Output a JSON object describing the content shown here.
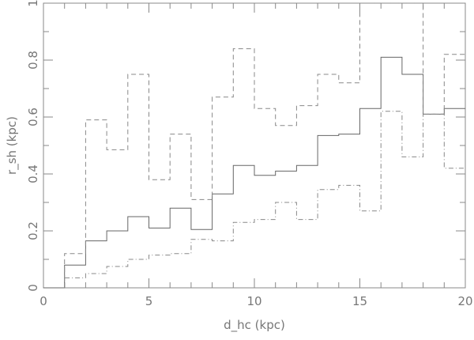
{
  "chart_data": {
    "type": "line",
    "style": "step-histogram",
    "xlabel": "d_hc (kpc)",
    "ylabel": "r_sh (kpc)",
    "xlim": [
      0,
      20
    ],
    "ylim": [
      0,
      1
    ],
    "x_ticks": [
      "0",
      "5",
      "10",
      "15",
      "20"
    ],
    "y_ticks": [
      "0",
      "0.2",
      "0.4",
      "0.6",
      "0.8",
      "1"
    ],
    "grid": false,
    "bin_edges": [
      0,
      1,
      2,
      3,
      4,
      5,
      6,
      7,
      8,
      9,
      10,
      11,
      12,
      13,
      14,
      15,
      16,
      17,
      18,
      19,
      20
    ],
    "series": [
      {
        "line": "solid",
        "color": "#666666",
        "values": [
          0,
          0.08,
          0.165,
          0.2,
          0.25,
          0.21,
          0.28,
          0.205,
          0.33,
          0.43,
          0.395,
          0.41,
          0.43,
          0.535,
          0.54,
          0.63,
          0.81,
          0.75,
          0.61,
          0.63
        ]
      },
      {
        "line": "dashed",
        "color": "#888888",
        "values": [
          null,
          0.12,
          0.59,
          0.485,
          0.75,
          0.38,
          0.54,
          0.31,
          0.67,
          0.84,
          0.63,
          0.57,
          0.64,
          0.75,
          0.72,
          1.0,
          1.0,
          1.0,
          0.61,
          0.82
        ]
      },
      {
        "line": "dash-dot",
        "color": "#888888",
        "values": [
          null,
          0.035,
          0.05,
          0.075,
          0.1,
          0.115,
          0.12,
          0.17,
          0.165,
          0.23,
          0.24,
          0.3,
          0.24,
          0.345,
          0.36,
          0.27,
          0.62,
          0.46,
          0.61,
          0.42
        ]
      }
    ]
  }
}
